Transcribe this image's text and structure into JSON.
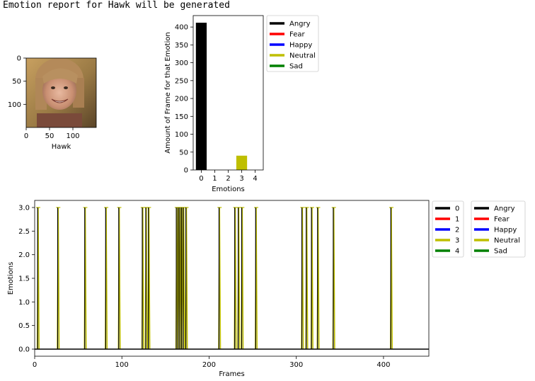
{
  "header": {
    "text": "Emotion report for Hawk will be generated"
  },
  "colors": {
    "angry": "#000000",
    "fear": "#ff0000",
    "happy": "#0000ff",
    "neutral": "#bfbf00",
    "sad": "#008000"
  },
  "photo": {
    "xlabel": "Hawk",
    "xticks": [
      "0",
      "50",
      "100"
    ],
    "yticks": [
      "0",
      "50",
      "100"
    ]
  },
  "chart_data": [
    {
      "type": "bar",
      "categories": [
        0,
        1,
        2,
        3,
        4
      ],
      "values": [
        412,
        0,
        0,
        40,
        0
      ],
      "bar_colors": [
        "#000000",
        "#ff0000",
        "#0000ff",
        "#bfbf00",
        "#008000"
      ],
      "xlabel": "Emotions",
      "ylabel": "Amount of Frame for that Emotion",
      "ylim": [
        0,
        432
      ],
      "yticks": [
        0,
        50,
        100,
        150,
        200,
        250,
        300,
        350,
        400
      ],
      "legend": {
        "placement": "outside-right",
        "entries": [
          {
            "name": "Angry",
            "color": "#000000"
          },
          {
            "name": "Fear",
            "color": "#ff0000"
          },
          {
            "name": "Happy",
            "color": "#0000ff"
          },
          {
            "name": "Neutral",
            "color": "#bfbf00"
          },
          {
            "name": "Sad",
            "color": "#008000"
          }
        ]
      }
    },
    {
      "type": "line",
      "xlabel": "Frames",
      "ylabel": "Emotions",
      "xlim": [
        0,
        452
      ],
      "ylim": [
        -0.15,
        3.15
      ],
      "xticks": [
        0,
        100,
        200,
        300,
        400
      ],
      "yticks": [
        0.0,
        0.5,
        1.0,
        1.5,
        2.0,
        2.5,
        3.0
      ],
      "neutral_spikes": [
        4,
        27,
        58,
        82,
        97,
        124,
        128,
        131,
        163,
        165,
        167,
        169,
        171,
        174,
        212,
        230,
        234,
        238,
        254,
        307,
        312,
        318,
        325,
        343,
        409
      ],
      "legends": [
        {
          "placement": "outside-right",
          "entries": [
            {
              "name": "0",
              "color": "#000000"
            },
            {
              "name": "1",
              "color": "#ff0000"
            },
            {
              "name": "2",
              "color": "#0000ff"
            },
            {
              "name": "3",
              "color": "#bfbf00"
            },
            {
              "name": "4",
              "color": "#008000"
            }
          ]
        },
        {
          "placement": "outside-right",
          "entries": [
            {
              "name": "Angry",
              "color": "#000000"
            },
            {
              "name": "Fear",
              "color": "#ff0000"
            },
            {
              "name": "Happy",
              "color": "#0000ff"
            },
            {
              "name": "Neutral",
              "color": "#bfbf00"
            },
            {
              "name": "Sad",
              "color": "#008000"
            }
          ]
        }
      ]
    }
  ]
}
